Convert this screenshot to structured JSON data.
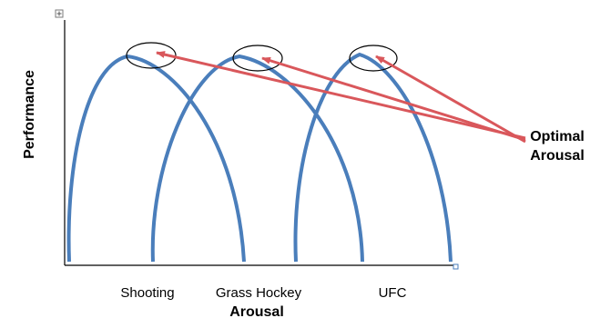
{
  "diagram": {
    "axis_x_label": "Arousal",
    "axis_y_label": "Performance",
    "callout_lines": [
      "Optimal",
      "Arousal"
    ],
    "curves": [
      {
        "label": "Shooting"
      },
      {
        "label": "Grass Hockey"
      },
      {
        "label": "UFC"
      }
    ],
    "colors": {
      "curve": "#4a7ebb",
      "arrow": "#d9575b",
      "ellipse": "#000000",
      "axis": "#000000"
    }
  }
}
